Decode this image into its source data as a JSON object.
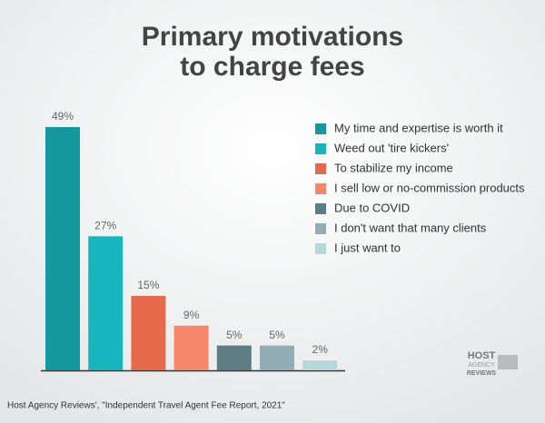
{
  "chart_data": {
    "type": "bar",
    "title": [
      "Primary motivations",
      "to charge fees"
    ],
    "categories": [
      "My time and expertise is worth it",
      "Weed out 'tire kickers'",
      "To stabilize my income",
      "I sell low or no-commission products",
      "Due to COVID",
      "I don't want that many clients",
      "I just want to"
    ],
    "values": [
      49,
      27,
      15,
      9,
      5,
      5,
      2
    ],
    "value_labels": [
      "49%",
      "27%",
      "15%",
      "9%",
      "5%",
      "5%",
      "2%"
    ],
    "colors": [
      "#16999d",
      "#17b6bf",
      "#e56a4b",
      "#f7876a",
      "#5d7c84",
      "#92adb3",
      "#b9d6da"
    ],
    "source": "Host Agency Reviews', \"Independent Travel Agent Fee Report, 2021\"",
    "logo": [
      "HOST",
      "AGENCY",
      "REVIEWS"
    ]
  }
}
